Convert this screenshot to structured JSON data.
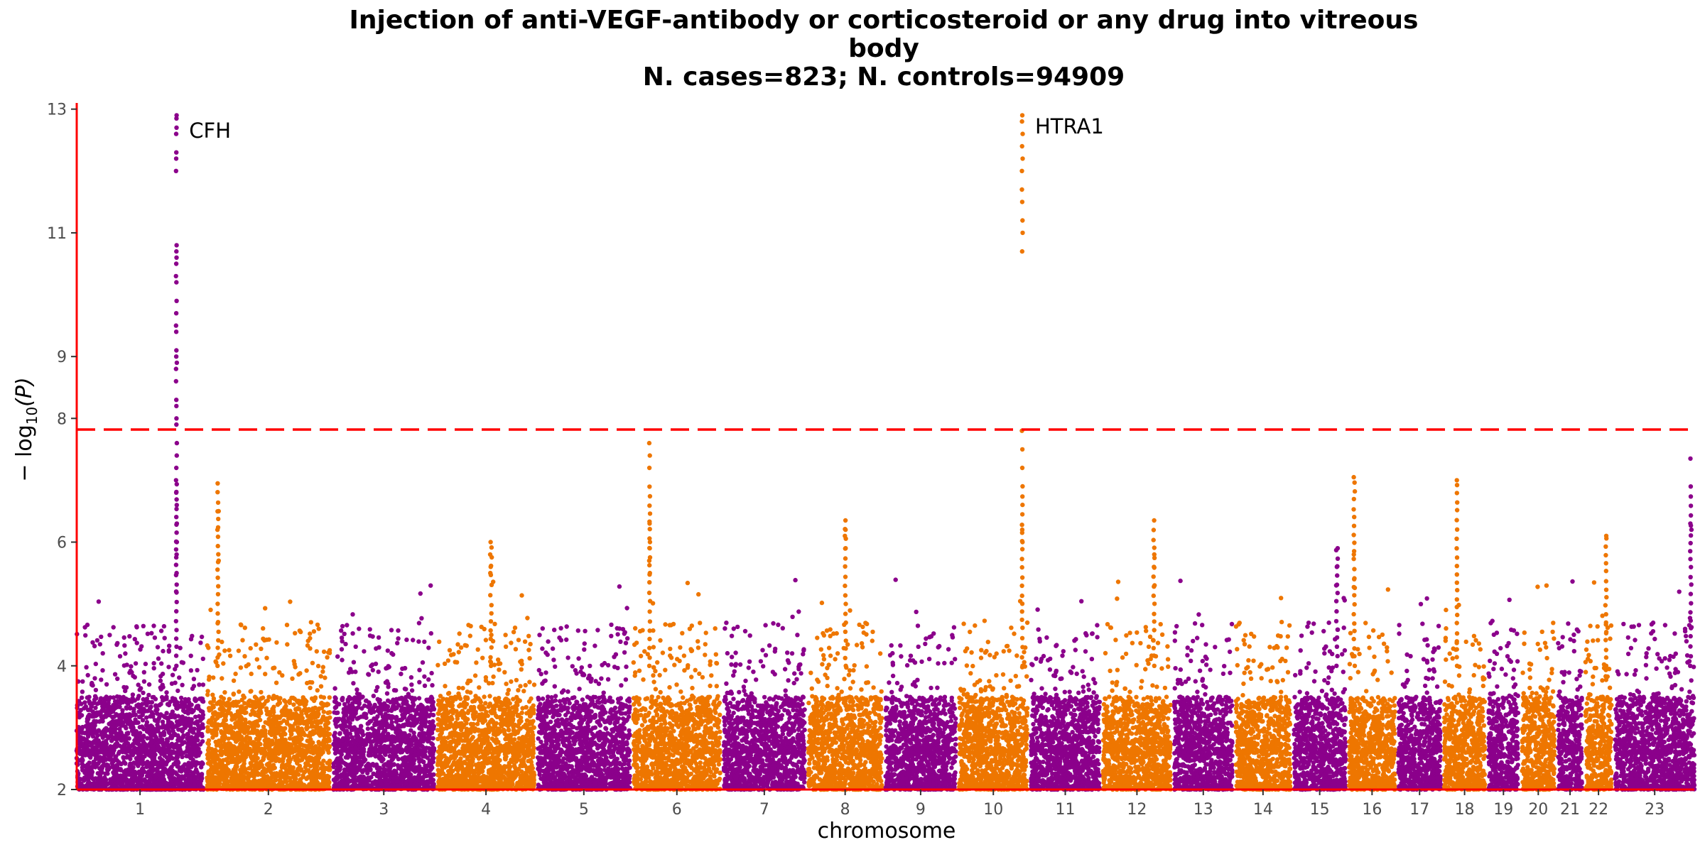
{
  "chart_data": {
    "type": "scatter",
    "subtype": "manhattan",
    "title_lines": [
      "Injection of anti-VEGF-antibody or corticosteroid or any drug into vitreous",
      "body",
      "N. cases=823; N. controls=94909"
    ],
    "xlabel": "chromosome",
    "ylabel_main": "− log",
    "ylabel_sub": "10",
    "ylabel_var": "(P)",
    "ylim": [
      2,
      13.1
    ],
    "yticks": [
      2,
      4,
      6,
      8,
      9,
      11,
      13
    ],
    "ytick_labels": [
      "2",
      "4",
      "6",
      "8",
      "9",
      "11",
      "13"
    ],
    "significance_line": 7.82,
    "colors": {
      "odd": "#8B008B",
      "even": "#EE7600",
      "axis": "#FF0000",
      "threshold": "#FF0000"
    },
    "chromosomes": [
      {
        "label": "1",
        "length": 249
      },
      {
        "label": "2",
        "length": 242
      },
      {
        "label": "3",
        "length": 198
      },
      {
        "label": "4",
        "length": 190
      },
      {
        "label": "5",
        "length": 181
      },
      {
        "label": "6",
        "length": 171
      },
      {
        "label": "7",
        "length": 159
      },
      {
        "label": "8",
        "length": 145
      },
      {
        "label": "9",
        "length": 138
      },
      {
        "label": "10",
        "length": 134
      },
      {
        "label": "11",
        "length": 135
      },
      {
        "label": "12",
        "length": 133
      },
      {
        "label": "13",
        "length": 114
      },
      {
        "label": "14",
        "length": 107
      },
      {
        "label": "15",
        "length": 102
      },
      {
        "label": "16",
        "length": 90
      },
      {
        "label": "17",
        "length": 83
      },
      {
        "label": "18",
        "length": 80
      },
      {
        "label": "19",
        "length": 59
      },
      {
        "label": "20",
        "length": 64
      },
      {
        "label": "21",
        "length": 47
      },
      {
        "label": "22",
        "length": 51
      },
      {
        "label": "23",
        "length": 156
      }
    ],
    "peaks": [
      {
        "chr": 1,
        "pos": 196,
        "width": 1.5,
        "values": [
          12.9,
          12.85,
          12.7,
          12.6,
          12.3,
          12.2,
          12.0,
          10.8,
          10.7,
          10.6,
          10.5,
          10.3,
          10.2,
          9.9,
          9.7,
          9.5,
          9.4,
          9.1,
          9.0,
          8.9,
          8.8,
          8.6,
          8.3,
          8.2,
          8.0,
          7.9,
          7.6,
          7.4,
          7.2,
          7.0,
          6.8,
          6.6,
          6.3,
          6.0,
          5.8,
          5.5,
          5.2
        ]
      },
      {
        "chr": 10,
        "pos": 124,
        "width": 1.2,
        "values": [
          12.9,
          12.8,
          12.6,
          12.4,
          12.2,
          12.0,
          11.7,
          11.5,
          11.2,
          11.0,
          10.7,
          7.8,
          7.5,
          7.2,
          6.2,
          6.0
        ]
      },
      {
        "chr": 6,
        "pos": 32,
        "width": 1.5,
        "values": [
          7.6,
          7.4,
          7.2,
          6.3,
          6.0,
          5.9,
          5.7,
          5.5
        ]
      },
      {
        "chr": 2,
        "pos": 22,
        "width": 2,
        "values": [
          6.95,
          6.5,
          6.2,
          5.7
        ]
      },
      {
        "chr": 4,
        "pos": 105,
        "width": 3,
        "values": [
          6.0,
          5.8,
          5.6,
          5.5
        ]
      },
      {
        "chr": 8,
        "pos": 73,
        "width": 2,
        "values": [
          6.35,
          6.2,
          6.1,
          5.9
        ]
      },
      {
        "chr": 12,
        "pos": 100,
        "width": 2,
        "values": [
          6.35,
          5.8,
          5.6,
          5.3
        ]
      },
      {
        "chr": 16,
        "pos": 10,
        "width": 2,
        "values": [
          7.05,
          5.8,
          5.4
        ]
      },
      {
        "chr": 18,
        "pos": 25,
        "width": 1,
        "values": [
          7.0
        ]
      },
      {
        "chr": 23,
        "pos": 149,
        "width": 2,
        "values": [
          7.35,
          6.3,
          6.2
        ]
      },
      {
        "chr": 22,
        "pos": 40,
        "width": 2,
        "values": [
          6.1
        ]
      },
      {
        "chr": 15,
        "pos": 85,
        "width": 3,
        "values": [
          5.9,
          5.6,
          5.3
        ]
      }
    ],
    "gene_labels": [
      {
        "text": "CFH",
        "chr": 1,
        "pos": 196,
        "y": 12.65
      },
      {
        "text": "HTRA1",
        "chr": 10,
        "pos": 124,
        "y": 12.72
      }
    ]
  }
}
